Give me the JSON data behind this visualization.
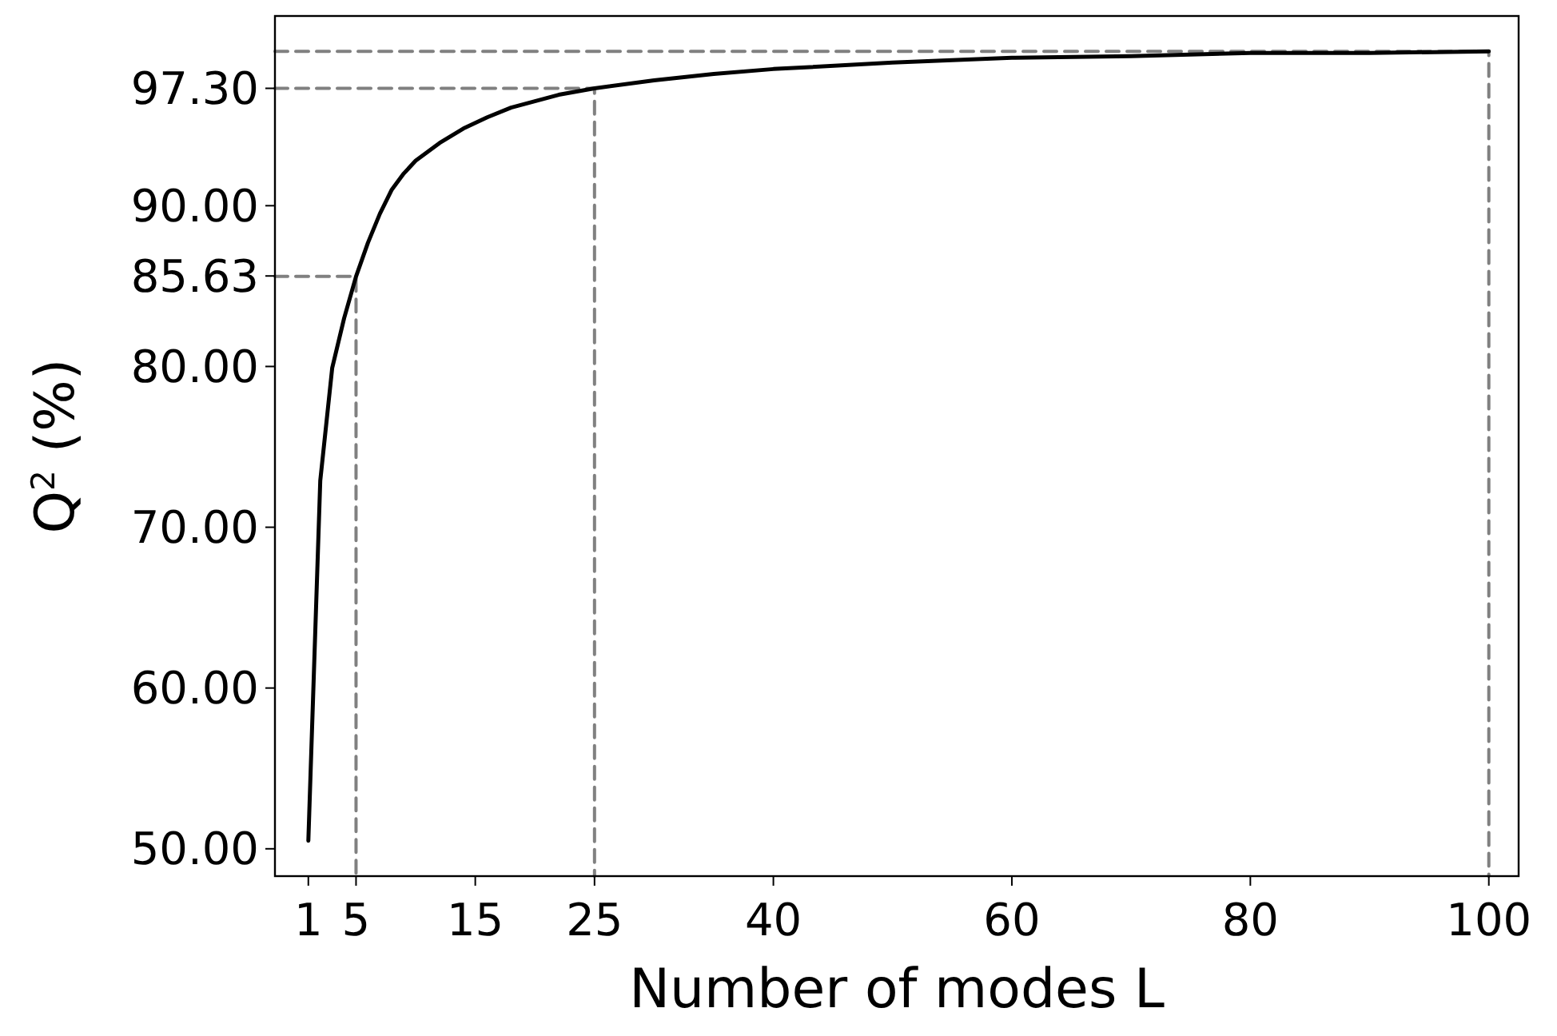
{
  "chart_data": {
    "type": "line",
    "xlabel": "Number of modes L",
    "ylabel": "Q$^{2}$ (%)",
    "series": [
      {
        "color": "#000000",
        "x": [
          1,
          2,
          3,
          4,
          5,
          6,
          7,
          8,
          9,
          10,
          12,
          14,
          16,
          18,
          20,
          22,
          25,
          30,
          35,
          40,
          50,
          60,
          70,
          80,
          90,
          100
        ],
        "values": [
          50.5,
          72.9,
          79.9,
          83.0,
          85.6,
          87.7,
          89.5,
          91.0,
          92.0,
          92.8,
          93.9,
          94.8,
          95.5,
          96.1,
          96.5,
          96.9,
          97.3,
          97.8,
          98.2,
          98.5,
          98.9,
          99.2,
          99.3,
          99.5,
          99.5,
          99.6
        ]
      },
      {
        "color": "#808080",
        "line_style": "dashed",
        "x": [
          -1.8,
          5,
          5
        ],
        "values": [
          85.6,
          85.6,
          48.3
        ]
      },
      {
        "color": "#808080",
        "line_style": "dashed",
        "x": [
          -1.8,
          25,
          25
        ],
        "values": [
          97.3,
          97.3,
          48.3
        ]
      },
      {
        "color": "#808080",
        "line_style": "dashed",
        "x": [
          -1.8,
          100,
          100
        ],
        "values": [
          99.6,
          99.6,
          48.3
        ]
      }
    ],
    "xlim": [
      -1.8,
      102.5
    ],
    "xticks": [
      1,
      5,
      15,
      25,
      40,
      60,
      80,
      100
    ],
    "ylim": [
      48.3,
      101.8
    ],
    "yticks": [
      {
        "value": 50,
        "label": "50.00"
      },
      {
        "value": 60,
        "label": "60.00"
      },
      {
        "value": 70,
        "label": "70.00"
      },
      {
        "value": 80,
        "label": "80.00"
      },
      {
        "value": 85.63,
        "label": "85.63"
      },
      {
        "value": 90,
        "label": "90.00"
      },
      {
        "value": 97.3,
        "label": "97.30"
      }
    ],
    "grid": false,
    "marker": "none",
    "line_style": "solid"
  }
}
